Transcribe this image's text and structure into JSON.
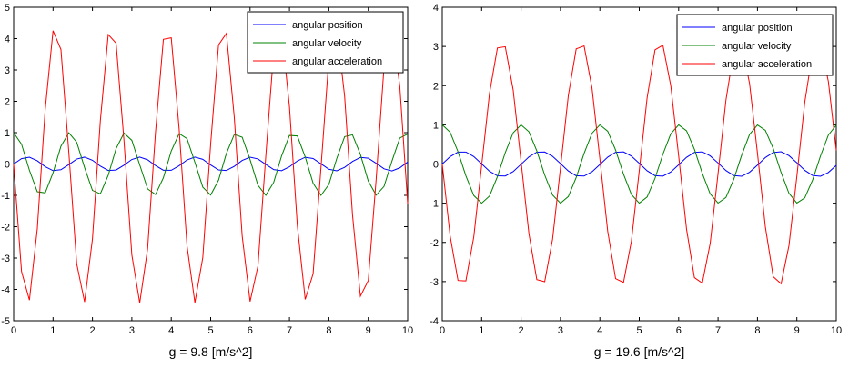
{
  "chart_data": [
    {
      "type": "line",
      "xlabel": "g = 9.8 [m/s^2]",
      "xlim": [
        0,
        10
      ],
      "ylim": [
        -5,
        5
      ],
      "xticks": [
        0,
        1,
        2,
        3,
        4,
        5,
        6,
        7,
        8,
        9,
        10
      ],
      "yticks": [
        -5,
        -4,
        -3,
        -2,
        -1,
        0,
        1,
        2,
        3,
        4,
        5
      ],
      "legend_position": "top-right",
      "grid": false,
      "sample_step": 0.2,
      "x_range": [
        0,
        10
      ],
      "series": [
        {
          "name": "angular position",
          "color": "#0000ff",
          "amplitude": 0.22,
          "omega": 4.4272,
          "phase": "sin"
        },
        {
          "name": "angular velocity",
          "color": "#008000",
          "amplitude": 1.0,
          "omega": 4.4272,
          "phase": "cos"
        },
        {
          "name": "angular acceleration",
          "color": "#ff0000",
          "amplitude": 4.43,
          "omega": 4.4272,
          "phase": "-sin"
        }
      ]
    },
    {
      "type": "line",
      "xlabel": "g = 19.6 [m/s^2]",
      "xlim": [
        0,
        10
      ],
      "ylim": [
        -4,
        4
      ],
      "xticks": [
        0,
        1,
        2,
        3,
        4,
        5,
        6,
        7,
        8,
        9,
        10
      ],
      "yticks": [
        -4,
        -3,
        -2,
        -1,
        0,
        1,
        2,
        3,
        4
      ],
      "legend_position": "top-right",
      "grid": false,
      "sample_step": 0.2,
      "x_range": [
        0,
        10
      ],
      "series": [
        {
          "name": "angular position",
          "color": "#0000ff",
          "amplitude": 0.32,
          "omega": 3.1305,
          "phase": "sin"
        },
        {
          "name": "angular velocity",
          "color": "#008000",
          "amplitude": 1.0,
          "omega": 3.1305,
          "phase": "cos"
        },
        {
          "name": "angular acceleration",
          "color": "#ff0000",
          "amplitude": 3.13,
          "omega": 3.1305,
          "phase": "-sin"
        }
      ]
    }
  ]
}
